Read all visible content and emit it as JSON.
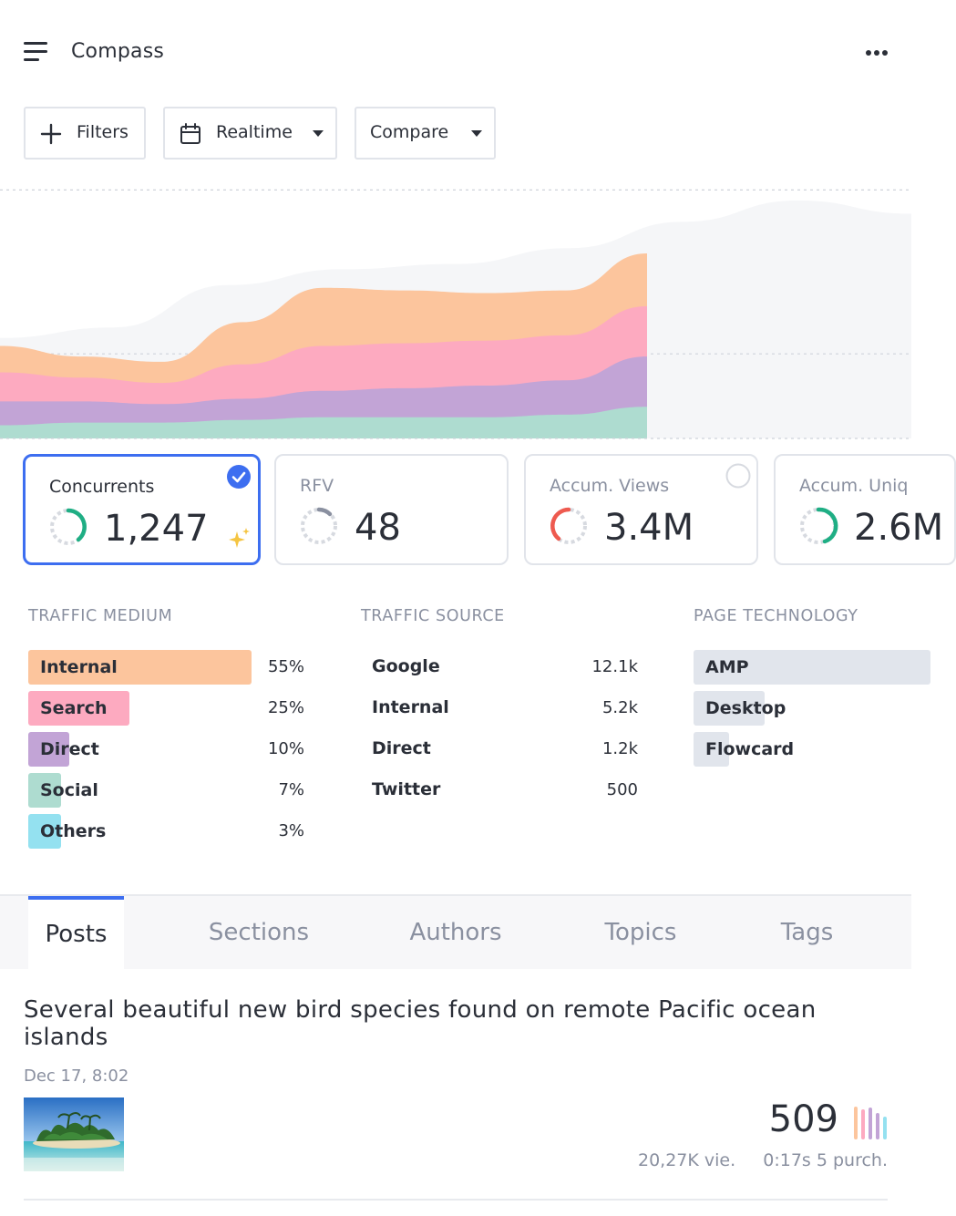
{
  "header": {
    "title": "Compass"
  },
  "toolbar": {
    "filters_label": "Filters",
    "realtime_label": "Realtime",
    "compare_label": "Compare"
  },
  "chart_data": {
    "type": "area",
    "stacked": true,
    "title": "",
    "xlabel": "",
    "ylabel": "",
    "x": [
      0,
      1,
      2,
      3,
      4,
      5,
      6,
      7,
      8
    ],
    "ylim": [
      0,
      100
    ],
    "series": [
      {
        "name": "Social",
        "color": "#aedcd0",
        "values": [
          5,
          6,
          6,
          7,
          8,
          8,
          8,
          9,
          12
        ]
      },
      {
        "name": "Direct",
        "color": "#c2a4d6",
        "values": [
          9,
          8,
          7,
          8,
          10,
          11,
          12,
          13,
          19
        ]
      },
      {
        "name": "Search",
        "color": "#fdaac0",
        "values": [
          11,
          9,
          8,
          13,
          17,
          17,
          17,
          17,
          19
        ]
      },
      {
        "name": "Internal",
        "color": "#fcc59d",
        "values": [
          10,
          8,
          8,
          16,
          22,
          20,
          18,
          17,
          20
        ]
      }
    ],
    "comparison_area": {
      "name": "Comparison",
      "color": "#f5f6f8",
      "values": [
        38,
        42,
        58,
        64,
        66,
        72,
        82,
        90,
        85
      ]
    },
    "gridlines": [
      94,
      32
    ]
  },
  "kpis": [
    {
      "label": "Concurrents",
      "value": "1,247",
      "selected": true
    },
    {
      "label": "RFV",
      "value": "48",
      "selected": false
    },
    {
      "label": "Accum. Views",
      "value": "3.4M",
      "selected": false
    },
    {
      "label": "Accum. Uniq",
      "value": "2.6M",
      "selected": false
    }
  ],
  "traffic_medium": {
    "title": "TRAFFIC MEDIUM",
    "items": [
      {
        "label": "Internal",
        "pct": "55%",
        "share": 0.55,
        "color": "#fcc59d"
      },
      {
        "label": "Search",
        "pct": "25%",
        "share": 0.25,
        "color": "#fdaac0"
      },
      {
        "label": "Direct",
        "pct": "10%",
        "share": 0.1,
        "color": "#c2a4d6"
      },
      {
        "label": "Social",
        "pct": "7%",
        "share": 0.07,
        "color": "#aedcd0"
      },
      {
        "label": "Others",
        "pct": "3%",
        "share": 0.03,
        "color": "#94e1f0"
      }
    ]
  },
  "traffic_source": {
    "title": "TRAFFIC SOURCE",
    "items": [
      {
        "label": "Google",
        "value": "12.1k"
      },
      {
        "label": "Internal",
        "value": "5.2k"
      },
      {
        "label": "Direct",
        "value": "1.2k"
      },
      {
        "label": "Twitter",
        "value": "500"
      }
    ]
  },
  "page_technology": {
    "title": "PAGE TECHNOLOGY",
    "items": [
      {
        "label": "AMP",
        "share": 1.0
      },
      {
        "label": "Desktop",
        "share": 0.3
      },
      {
        "label": "Flowcard",
        "share": 0.15
      }
    ]
  },
  "tabs": [
    {
      "label": "Posts",
      "active": true
    },
    {
      "label": "Sections",
      "active": false
    },
    {
      "label": "Authors",
      "active": false
    },
    {
      "label": "Topics",
      "active": false
    },
    {
      "label": "Tags",
      "active": false
    }
  ],
  "post": {
    "title": "Several beautiful new bird species found on remote Pacific ocean islands",
    "date": "Dec 17, 8:02",
    "count": "509",
    "views": "20,27K vie.",
    "time_purch": "0:17s 5 purch."
  },
  "colors": {
    "accent": "#3d6ef0",
    "muted": "#8a90a0",
    "text": "#2b2f38",
    "gauge_green": "#1fae84",
    "gauge_red": "#ee5a4f",
    "gauge_gray": "#8a90a0"
  }
}
